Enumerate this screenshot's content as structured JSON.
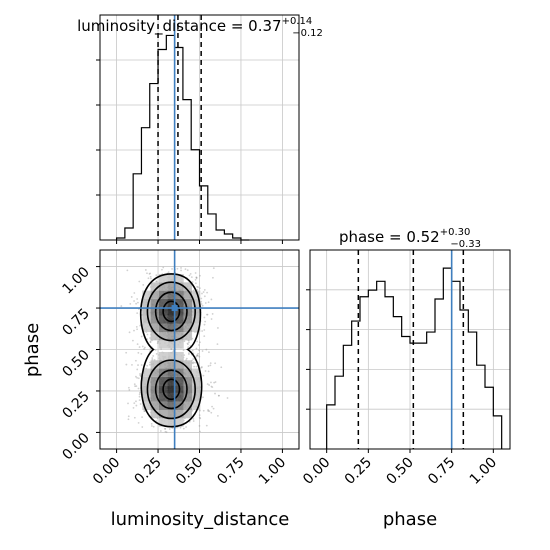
{
  "chart_data": {
    "type": "corner",
    "parameters": [
      "luminosity_distance",
      "phase"
    ],
    "axis_range": [
      -0.1,
      1.1
    ],
    "ticks": [
      "0.00",
      "0.25",
      "0.50",
      "0.75",
      "1.00"
    ],
    "grid": true,
    "truth": {
      "luminosity_distance": 0.35,
      "phase": 0.75,
      "color": "#3f7fbf"
    },
    "marginals": [
      {
        "parameter": "luminosity_distance",
        "title_main": "luminosity_distance = 0.37",
        "title_sup": "+0.14",
        "title_sub": "−0.12",
        "quantiles": [
          0.25,
          0.37,
          0.51
        ],
        "bin_edges": [
          0.0,
          0.05,
          0.1,
          0.15,
          0.2,
          0.25,
          0.3,
          0.35,
          0.4,
          0.45,
          0.5,
          0.55,
          0.6,
          0.65,
          0.7,
          0.75,
          0.8
        ],
        "counts": [
          1,
          6,
          33,
          56,
          78,
          95,
          102,
          96,
          70,
          45,
          27,
          13,
          5,
          3,
          1,
          0
        ]
      },
      {
        "parameter": "phase",
        "title_main": "phase = 0.52",
        "title_sup": "+0.30",
        "title_sub": "−0.33",
        "quantiles": [
          0.19,
          0.52,
          0.82
        ],
        "bin_edges": [
          0.0,
          0.05,
          0.1,
          0.15,
          0.2,
          0.25,
          0.3,
          0.35,
          0.4,
          0.45,
          0.5,
          0.55,
          0.6,
          0.65,
          0.7,
          0.75,
          0.8,
          0.85,
          0.9,
          0.95,
          1.0,
          1.05
        ],
        "counts": [
          20,
          33,
          47,
          58,
          69,
          72,
          76,
          69,
          60,
          51,
          48,
          48,
          53,
          68,
          82,
          76,
          63,
          53,
          38,
          28,
          15
        ]
      }
    ],
    "joint": {
      "x": "luminosity_distance",
      "y": "phase",
      "contour_levels": 3,
      "modes": [
        {
          "x": 0.33,
          "y": 0.73,
          "sx": 0.09,
          "sy": 0.11
        },
        {
          "x": 0.33,
          "y": 0.26,
          "sx": 0.09,
          "sy": 0.11
        }
      ]
    },
    "xlabels": [
      "luminosity_distance",
      "phase"
    ],
    "ylabel": "phase"
  }
}
